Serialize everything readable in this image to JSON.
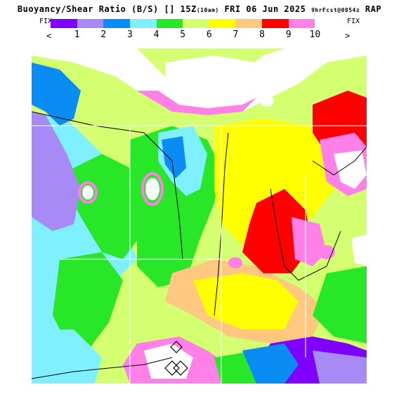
{
  "header": {
    "title_main": "Buoyancy/Shear Ratio (B/S) [] 15Z",
    "title_small1": "(10am)",
    "title_date": " FRI 06 Jun 2025 ",
    "title_small2": "9hrFcst@0854z",
    "title_model": " RAP"
  },
  "legend": {
    "fix_left": "FIX",
    "fix_right": "FIX",
    "prev": "<",
    "next": ">",
    "colors": [
      "#8000ff",
      "#a78af5",
      "#0a8cf5",
      "#7ff0ff",
      "#28e628",
      "#d4ff70",
      "#ffff00",
      "#ffc880",
      "#ff0000",
      "#ff80e6",
      "#ffffff"
    ],
    "ticks": [
      "1",
      "2",
      "3",
      "4",
      "5",
      "6",
      "7",
      "8",
      "9",
      "10"
    ]
  },
  "map": {
    "region_colors": {
      "white": "#ffffff",
      "purple": "#8000ff",
      "lavender": "#a78af5",
      "blue": "#0a8cf5",
      "cyan": "#7ff0ff",
      "green": "#28e628",
      "lightgreen": "#d4ff70",
      "yellow": "#ffff00",
      "tan": "#ffc880",
      "red": "#ff0000",
      "pink": "#ff80e6"
    }
  }
}
